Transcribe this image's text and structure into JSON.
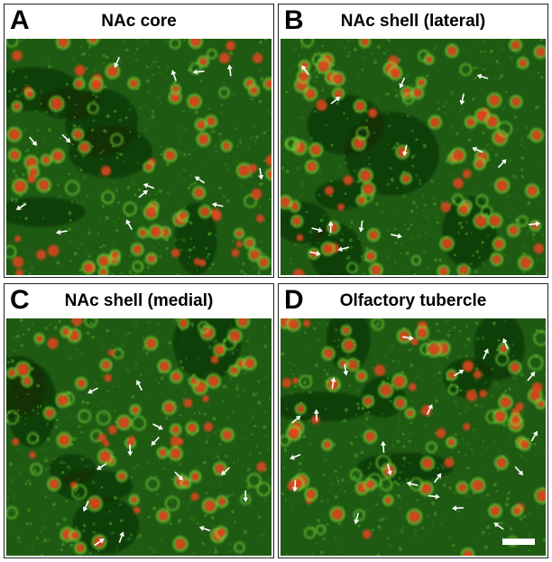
{
  "panels": [
    {
      "letter": "A",
      "title": "NAc core"
    },
    {
      "letter": "B",
      "title": "NAc shell (lateral)"
    },
    {
      "letter": "C",
      "title": "NAc shell (medial)"
    },
    {
      "letter": "D",
      "title": "Olfactory tubercle"
    }
  ],
  "colors": {
    "background": "#1f5a12",
    "green_cell": "#6fd03a",
    "red_nucleus": "#e0451c",
    "arrow": "#ffffff"
  },
  "arrow_counts": {
    "A": 14,
    "B": 15,
    "C": 13,
    "D": 22
  },
  "scale_bar": true
}
